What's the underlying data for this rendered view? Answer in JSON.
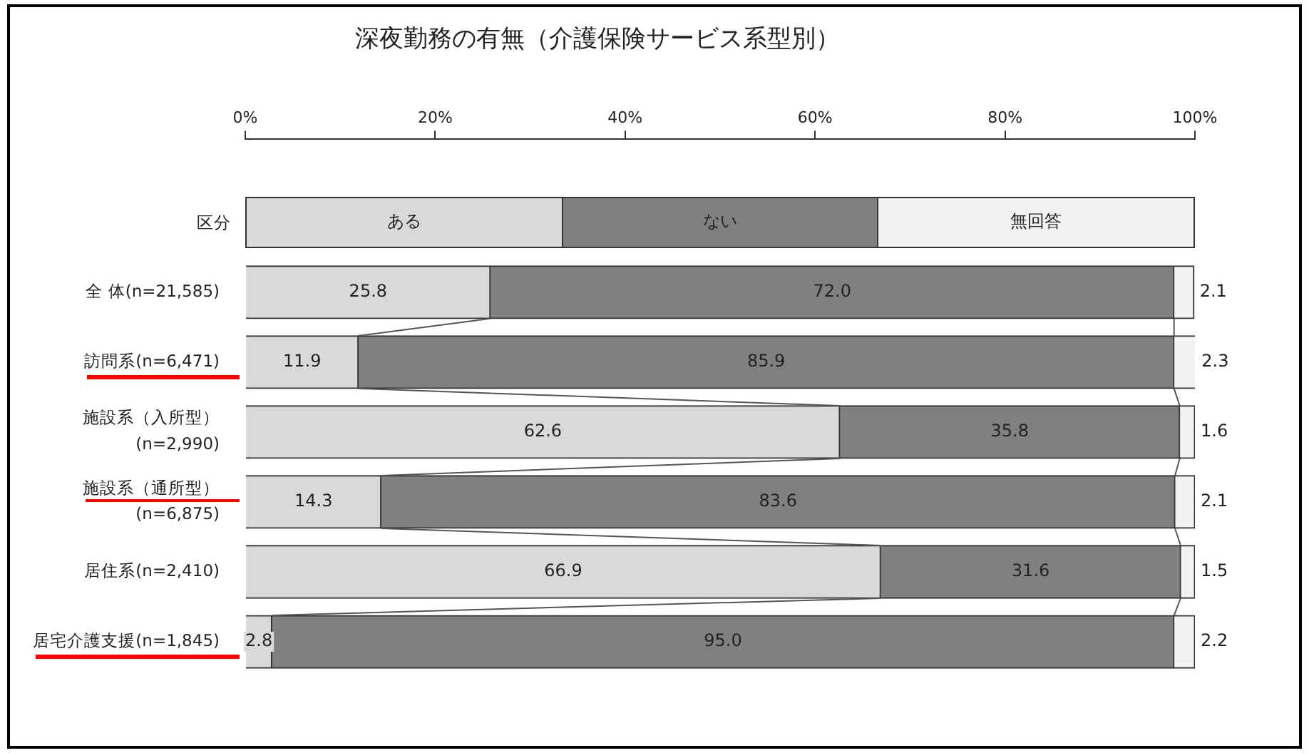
{
  "chart_data": {
    "type": "bar",
    "orientation": "horizontal",
    "stacked": true,
    "title": "深夜勤務の有無（介護保険サービス系型別）",
    "categories": [
      "全 体(n=21,585)",
      "訪問系(n=6,471)",
      "施設系（入所型）\n(n=2,990)",
      "施設系（通所型）\n(n=6,875)",
      "居住系(n=2,410)",
      "居宅介護支援(n=1,845)"
    ],
    "series": [
      {
        "name": "ある",
        "color": "#d9d9d9",
        "values": [
          25.8,
          11.9,
          62.6,
          14.3,
          66.9,
          2.8
        ],
        "value_labels": [
          "25.8",
          "11.9",
          "62.6",
          "14.3",
          "66.9",
          "2.8"
        ]
      },
      {
        "name": "ない",
        "color": "#808080",
        "values": [
          72.0,
          85.9,
          35.8,
          83.6,
          31.6,
          95.0
        ],
        "value_labels": [
          "72.0",
          "85.9",
          "35.8",
          "83.6",
          "31.6",
          "95.0"
        ]
      },
      {
        "name": "無回答",
        "color": "#f2f2f2",
        "values": [
          2.1,
          2.3,
          1.6,
          2.1,
          1.5,
          2.2
        ],
        "value_labels": [
          "2.1",
          "2.3",
          "1.6",
          "2.1",
          "1.5",
          "2.2"
        ]
      }
    ],
    "legend": "top",
    "legend_title": "区分",
    "x2lim": [
      0,
      100
    ],
    "x2ticks": [
      {
        "value": 0,
        "label": "0%"
      },
      {
        "value": 20,
        "label": "20%"
      },
      {
        "value": 40,
        "label": "40%"
      },
      {
        "value": 60,
        "label": "60%"
      },
      {
        "value": 80,
        "label": "80%"
      },
      {
        "value": 100,
        "label": "100%"
      }
    ],
    "grid": false
  }
}
